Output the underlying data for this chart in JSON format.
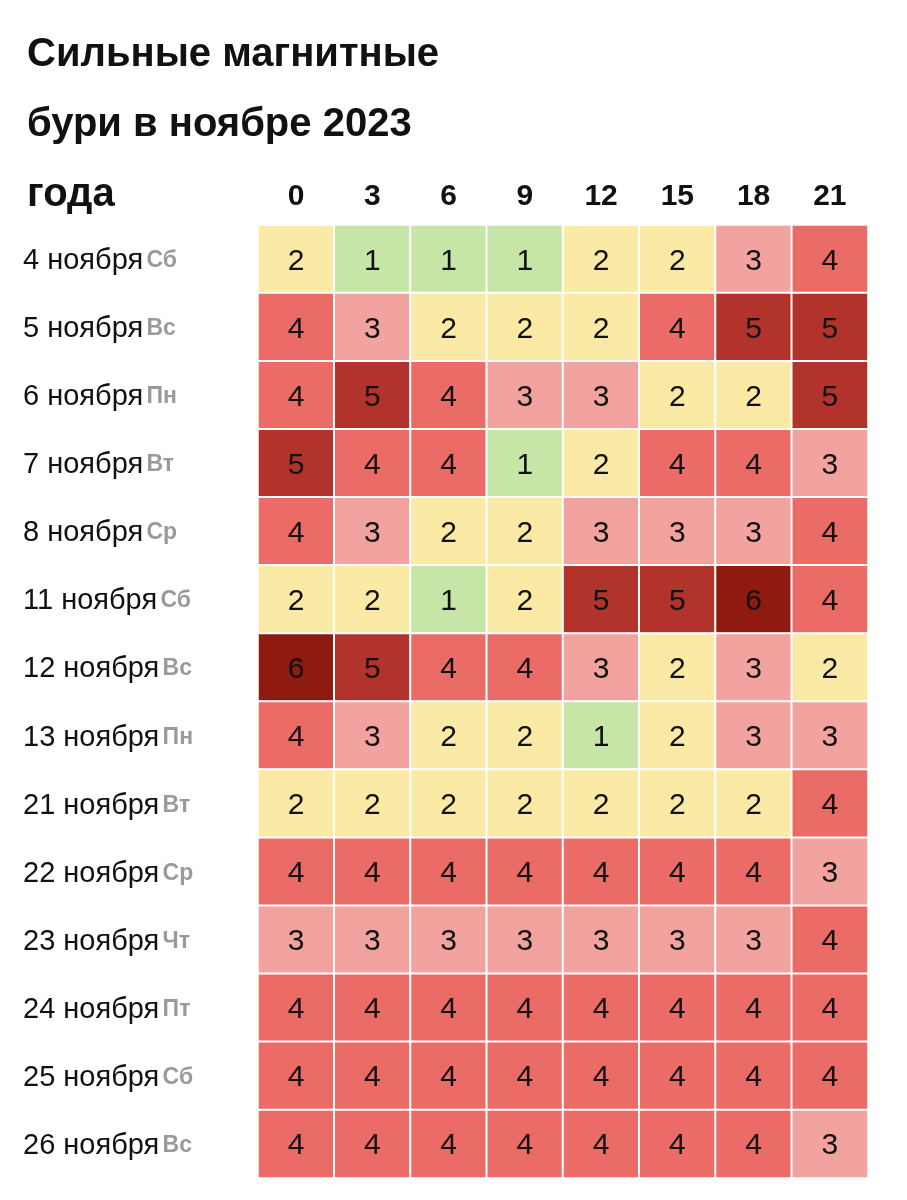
{
  "chart_data": {
    "type": "heatmap",
    "title": "Сильные магнитные бури в ноябре 2023 года",
    "categories": [
      "0",
      "3",
      "6",
      "9",
      "12",
      "15",
      "18",
      "21"
    ],
    "y_categories": [
      "4 ноября",
      "5 ноября",
      "6 ноября",
      "7 ноября",
      "8 ноября",
      "11 ноября",
      "12 ноября",
      "13 ноября",
      "21 ноября",
      "22 ноября",
      "23 ноября",
      "24 ноября",
      "25 ноября",
      "26 ноября"
    ],
    "y2_categories": [
      "Сб",
      "Вс",
      "Пн",
      "Вт",
      "Ср",
      "Сб",
      "Вс",
      "Пн",
      "Вт",
      "Ср",
      "Чт",
      "Пт",
      "Сб",
      "Вс"
    ],
    "cells": [
      [
        2,
        1,
        1,
        1,
        2,
        2,
        3,
        4
      ],
      [
        4,
        3,
        2,
        2,
        2,
        4,
        5,
        5
      ],
      [
        4,
        5,
        4,
        3,
        3,
        2,
        2,
        5
      ],
      [
        5,
        4,
        4,
        1,
        2,
        4,
        4,
        3
      ],
      [
        4,
        3,
        2,
        2,
        3,
        3,
        3,
        4
      ],
      [
        2,
        2,
        1,
        2,
        5,
        5,
        6,
        4
      ],
      [
        6,
        5,
        4,
        4,
        3,
        2,
        3,
        2
      ],
      [
        4,
        3,
        2,
        2,
        1,
        2,
        3,
        3
      ],
      [
        2,
        2,
        2,
        2,
        2,
        2,
        2,
        4
      ],
      [
        4,
        4,
        4,
        4,
        4,
        4,
        4,
        3
      ],
      [
        3,
        3,
        3,
        3,
        3,
        3,
        3,
        4
      ],
      [
        4,
        4,
        4,
        4,
        4,
        4,
        4,
        4
      ],
      [
        4,
        4,
        4,
        4,
        4,
        4,
        4,
        4
      ],
      [
        4,
        4,
        4,
        4,
        4,
        4,
        4,
        3
      ]
    ],
    "data_labels": true
  }
}
